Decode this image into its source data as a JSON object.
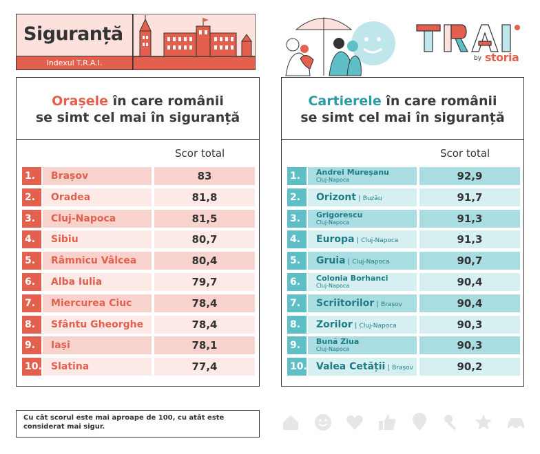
{
  "header": {
    "title": "Siguranță",
    "subtitle": "Indexul T.R.A.I."
  },
  "logo": {
    "brand": "TRAI",
    "by": "by",
    "partner": "storia"
  },
  "colors": {
    "coral": "#e2604d",
    "teal": "#5fbfc7",
    "teal_dark": "#1e7c86"
  },
  "left_panel": {
    "title_accent": "Orașele",
    "title_rest": " în care românii",
    "title_line2": "se simt cel mai în siguranță",
    "score_header": "Scor total",
    "rows": [
      {
        "rank": "1.",
        "name": "Brașov",
        "score": "83"
      },
      {
        "rank": "2.",
        "name": "Oradea",
        "score": "81,8"
      },
      {
        "rank": "3.",
        "name": "Cluj-Napoca",
        "score": "81,5"
      },
      {
        "rank": "4.",
        "name": "Sibiu",
        "score": "80,7"
      },
      {
        "rank": "5.",
        "name": "Râmnicu Vâlcea",
        "score": "80,4"
      },
      {
        "rank": "6.",
        "name": "Alba Iulia",
        "score": "79,7"
      },
      {
        "rank": "7.",
        "name": "Miercurea Ciuc",
        "score": "78,4"
      },
      {
        "rank": "8.",
        "name": "Sfântu Gheorghe",
        "score": "78,4"
      },
      {
        "rank": "9.",
        "name": "Iași",
        "score": "78,1"
      },
      {
        "rank": "10.",
        "name": "Slatina",
        "score": "77,4"
      }
    ]
  },
  "right_panel": {
    "title_accent": "Cartierele",
    "title_rest": " în care românii",
    "title_line2": "se simt cel mai în siguranță",
    "score_header": "Scor total",
    "rows": [
      {
        "rank": "1.",
        "name": "Andrei Mureșanu",
        "city": "Cluj-Napoca",
        "score": "92,9"
      },
      {
        "rank": "2.",
        "name": "Orizont",
        "city": "Buzău",
        "score": "91,7"
      },
      {
        "rank": "3.",
        "name": "Grigorescu",
        "city": "Cluj-Napoca",
        "score": "91,3"
      },
      {
        "rank": "4.",
        "name": "Europa",
        "city": "Cluj-Napoca",
        "score": "91,3"
      },
      {
        "rank": "5.",
        "name": "Gruia",
        "city": "Cluj-Napoca",
        "score": "90,7"
      },
      {
        "rank": "6.",
        "name": "Colonia Borhanci",
        "city": "Cluj-Napoca",
        "score": "90,4"
      },
      {
        "rank": "7.",
        "name": "Scriitorilor",
        "city": "Brașov",
        "score": "90,4"
      },
      {
        "rank": "8.",
        "name": "Zorilor",
        "city": "Cluj-Napoca",
        "score": "90,3"
      },
      {
        "rank": "9.",
        "name": "Bună Ziua",
        "city": "Cluj-Napoca",
        "score": "90,3"
      },
      {
        "rank": "10.",
        "name": "Valea Cetății",
        "city": "Brașov",
        "score": "90,2"
      }
    ]
  },
  "footnote": "Cu cât scorul este mai aproape de 100, cu atât este considerat mai sigur.",
  "bottom_icons": [
    "house-icon",
    "smiley-icon",
    "heart-icon",
    "thumbs-up-icon",
    "location-pin-icon",
    "key-icon",
    "star-icon",
    "car-icon"
  ]
}
